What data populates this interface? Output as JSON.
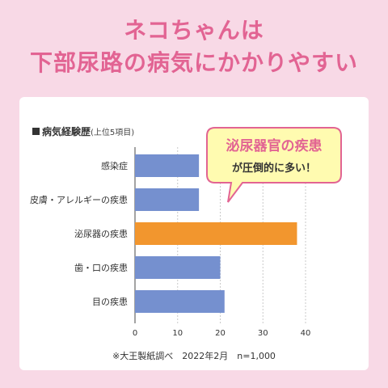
{
  "headline": {
    "line1": "ネコちゃんは",
    "line2": "下部尿路の病気にかかりやすい"
  },
  "chart_title": "病気経験歴",
  "chart_title_note": "(上位5項目)",
  "callout": {
    "line1": "泌尿器官の疾患",
    "line2": "が圧倒的に多い！"
  },
  "footnote": "※大王製紙調べ　2022年2月　n=1,000",
  "colors": {
    "background": "#f8d9e6",
    "headline": "#e26493",
    "bar_default": "#7590cf",
    "bar_highlight": "#f2962e",
    "callout_fill": "#fffbb0",
    "callout_border": "#e26493"
  },
  "chart_data": {
    "type": "bar",
    "orientation": "horizontal",
    "categories": [
      "感染症",
      "皮膚・アレルギーの疾患",
      "泌尿器の疾患",
      "歯・口の疾患",
      "目の疾患"
    ],
    "values": [
      15,
      15,
      38,
      20,
      21
    ],
    "highlight_index": 2,
    "xlim": [
      0,
      40
    ],
    "xticks": [
      "0",
      "10",
      "20",
      "30",
      "40"
    ],
    "grid": true
  }
}
